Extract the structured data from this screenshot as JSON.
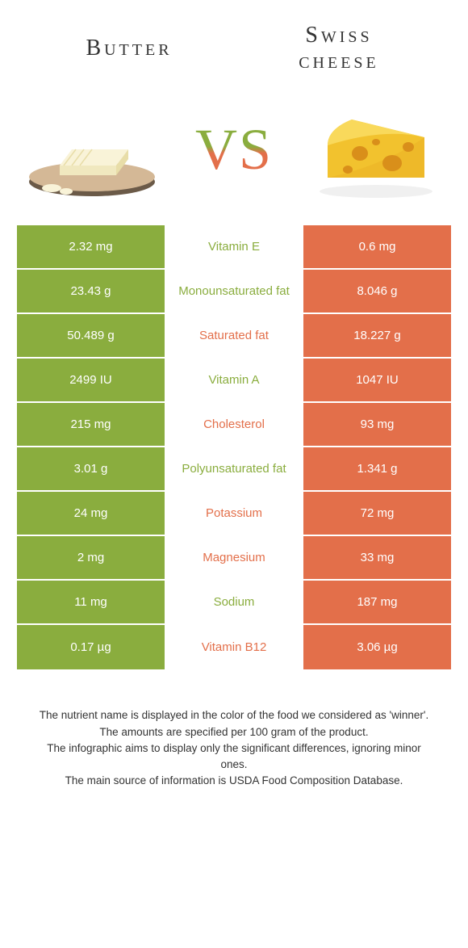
{
  "colors": {
    "green": "#8aad3e",
    "orange": "#e36f4a",
    "vs_gradient_top": "#9cb84f",
    "vs_gradient_bottom": "#d8623f"
  },
  "header": {
    "left_title": "Butter",
    "right_title_line1": "Swiss",
    "right_title_line2": "cheese",
    "vs_text": "VS"
  },
  "rows": [
    {
      "nutrient": "Vitamin E",
      "left": "2.32 mg",
      "right": "0.6 mg",
      "winner": "left"
    },
    {
      "nutrient": "Monounsaturated fat",
      "left": "23.43 g",
      "right": "8.046 g",
      "winner": "left"
    },
    {
      "nutrient": "Saturated fat",
      "left": "50.489 g",
      "right": "18.227 g",
      "winner": "right"
    },
    {
      "nutrient": "Vitamin A",
      "left": "2499 IU",
      "right": "1047 IU",
      "winner": "left"
    },
    {
      "nutrient": "Cholesterol",
      "left": "215 mg",
      "right": "93 mg",
      "winner": "right"
    },
    {
      "nutrient": "Polyunsaturated fat",
      "left": "3.01 g",
      "right": "1.341 g",
      "winner": "left"
    },
    {
      "nutrient": "Potassium",
      "left": "24 mg",
      "right": "72 mg",
      "winner": "right"
    },
    {
      "nutrient": "Magnesium",
      "left": "2 mg",
      "right": "33 mg",
      "winner": "right"
    },
    {
      "nutrient": "Sodium",
      "left": "11 mg",
      "right": "187 mg",
      "winner": "left"
    },
    {
      "nutrient": "Vitamin B12",
      "left": "0.17 µg",
      "right": "3.06 µg",
      "winner": "right"
    }
  ],
  "footer": {
    "line1": "The nutrient name is displayed in the color of the food we considered as 'winner'.",
    "line2": "The amounts are specified per 100 gram of the product.",
    "line3": "The infographic aims to display only the significant differences, ignoring minor ones.",
    "line4": "The main source of information is USDA Food Composition Database."
  }
}
